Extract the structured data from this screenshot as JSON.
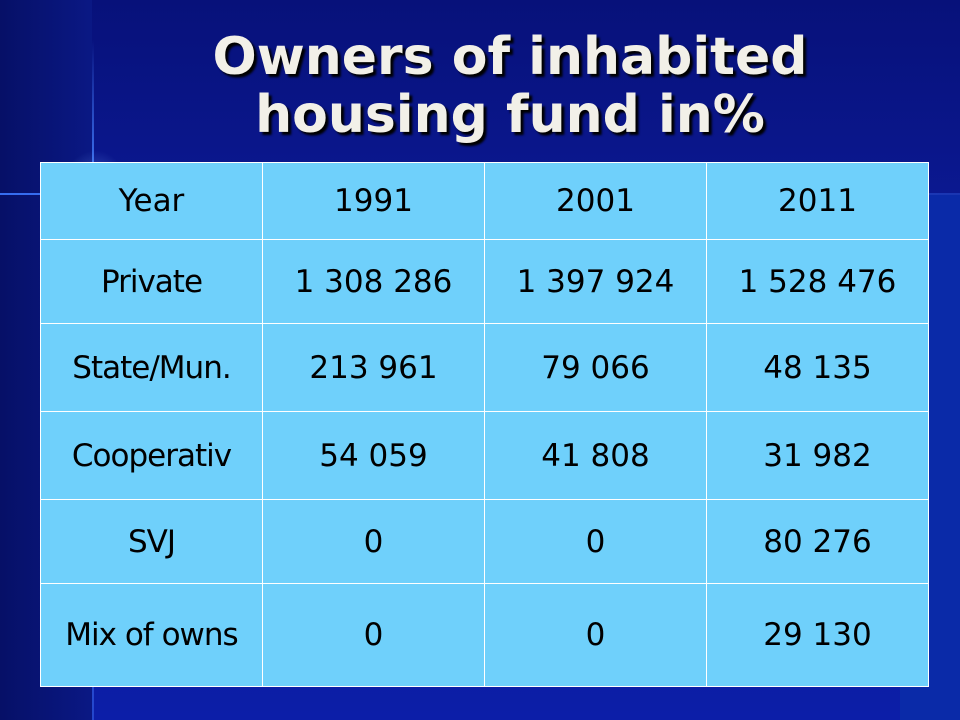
{
  "slide": {
    "title_line1": "Owners of inhabited",
    "title_line2": "housing fund in%"
  },
  "table": {
    "header": [
      "Year",
      "1991",
      "2001",
      "2011"
    ],
    "rows": [
      {
        "label": "Private",
        "values": [
          "1 308 286",
          "1 397 924",
          "1 528 476"
        ]
      },
      {
        "label": "State/Mun.",
        "values": [
          "213 961",
          "79 066",
          "48 135"
        ]
      },
      {
        "label": "Cooperativ",
        "values": [
          "54 059",
          "41 808",
          "31 982"
        ]
      },
      {
        "label": "SVJ",
        "values": [
          "0",
          "0",
          "80 276"
        ]
      },
      {
        "label": "Mix of owns",
        "values": [
          "0",
          "0",
          "29 130"
        ]
      }
    ]
  },
  "colors": {
    "background": "#0a1585",
    "table_fill": "#6fd0fb",
    "title_text": "#f2f0e8"
  }
}
